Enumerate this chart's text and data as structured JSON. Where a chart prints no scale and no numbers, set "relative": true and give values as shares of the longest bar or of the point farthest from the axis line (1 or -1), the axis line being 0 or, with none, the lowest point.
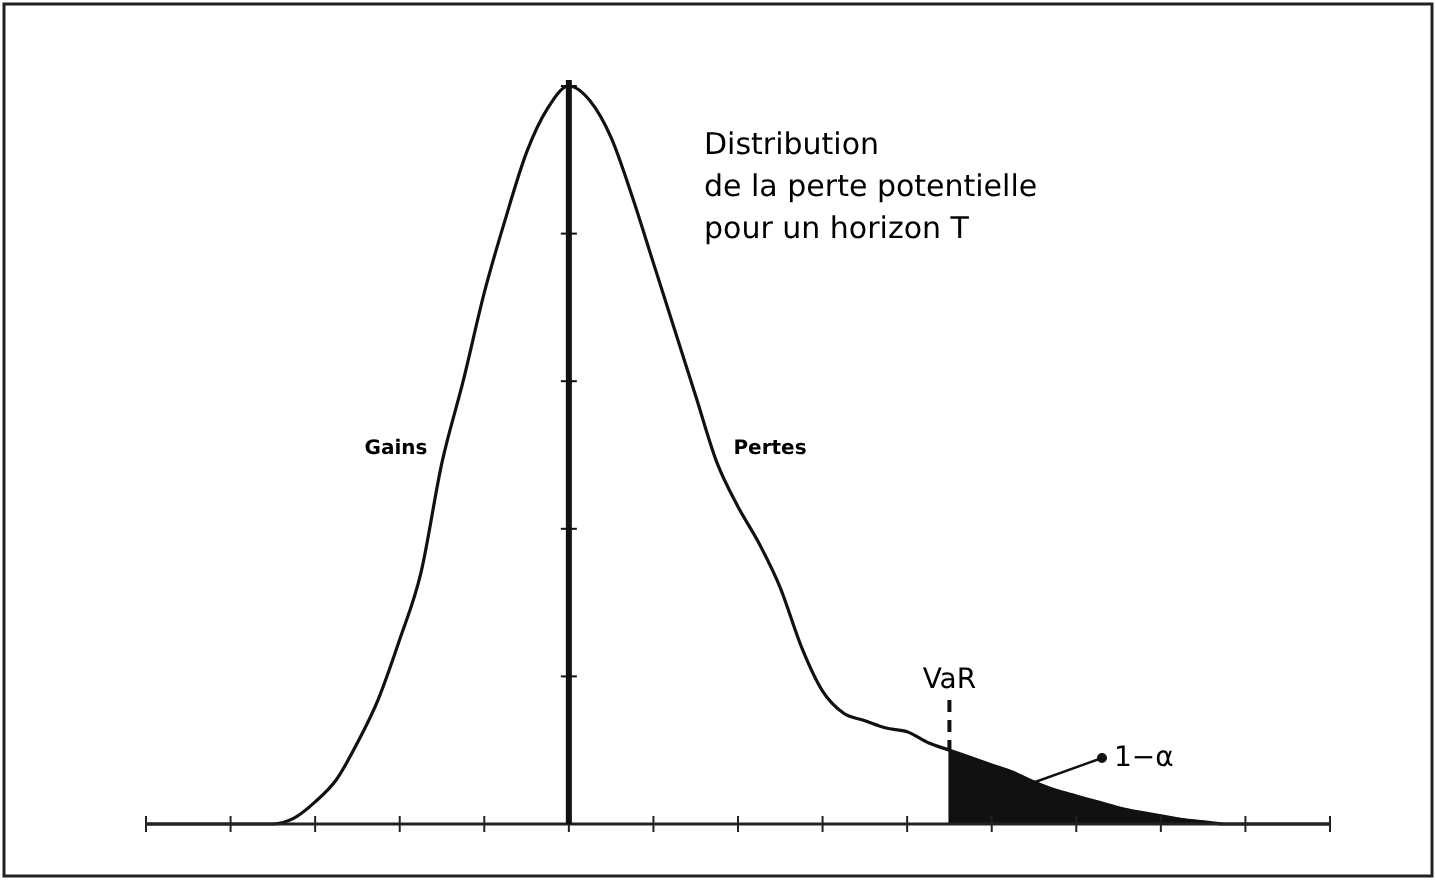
{
  "chart_data": {
    "type": "line",
    "title": "Distribution\nde la perte potentielle\npour un horizon T",
    "relative": true,
    "categories": [
      null,
      null,
      null,
      null,
      null,
      null,
      null,
      null,
      null,
      null,
      null,
      null,
      null,
      null,
      null,
      null,
      null,
      null,
      null,
      null,
      null,
      null,
      null,
      null,
      null,
      null,
      null,
      null,
      null,
      null,
      null,
      null,
      null,
      null,
      null,
      null,
      null,
      null,
      null,
      null,
      null,
      null,
      null,
      null,
      null,
      null,
      null,
      null,
      null,
      null,
      null,
      null,
      null,
      null,
      null,
      null,
      null
    ],
    "series": [
      {
        "color": "#111111",
        "values": [
          0,
          0,
          0,
          0,
          0,
          0,
          0,
          0.008,
          0.03,
          0.06,
          0.11,
          0.17,
          0.25,
          0.34,
          0.49,
          0.6,
          0.72,
          0.82,
          0.91,
          0.97,
          1,
          0.98,
          0.93,
          0.85,
          0.76,
          0.67,
          0.58,
          0.49,
          0.43,
          0.38,
          0.32,
          0.24,
          0.18,
          0.15,
          0.14,
          0.13,
          0.125,
          0.11,
          0.1,
          0.09,
          0.08,
          0.07,
          0.057,
          0.046,
          0.038,
          0.03,
          0.022,
          0.016,
          0.011,
          0.006,
          0.003,
          0,
          0,
          0,
          0,
          0,
          0
        ]
      },
      {
        "type": "area",
        "color": "#111111",
        "values": [
          null,
          null,
          null,
          null,
          null,
          null,
          null,
          null,
          null,
          null,
          null,
          null,
          null,
          null,
          null,
          null,
          null,
          null,
          null,
          null,
          null,
          null,
          null,
          null,
          null,
          null,
          null,
          null,
          null,
          null,
          null,
          null,
          null,
          null,
          null,
          null,
          null,
          null,
          0.1,
          0.09,
          0.08,
          0.07,
          0.057,
          0.046,
          0.038,
          0.03,
          0.022,
          0.016,
          0.011,
          0.006,
          0.003,
          0,
          0,
          0,
          0,
          0,
          0
        ]
      }
    ],
    "annotations": [
      "Gains",
      "Pertes",
      "1−α",
      "VaR"
    ]
  }
}
